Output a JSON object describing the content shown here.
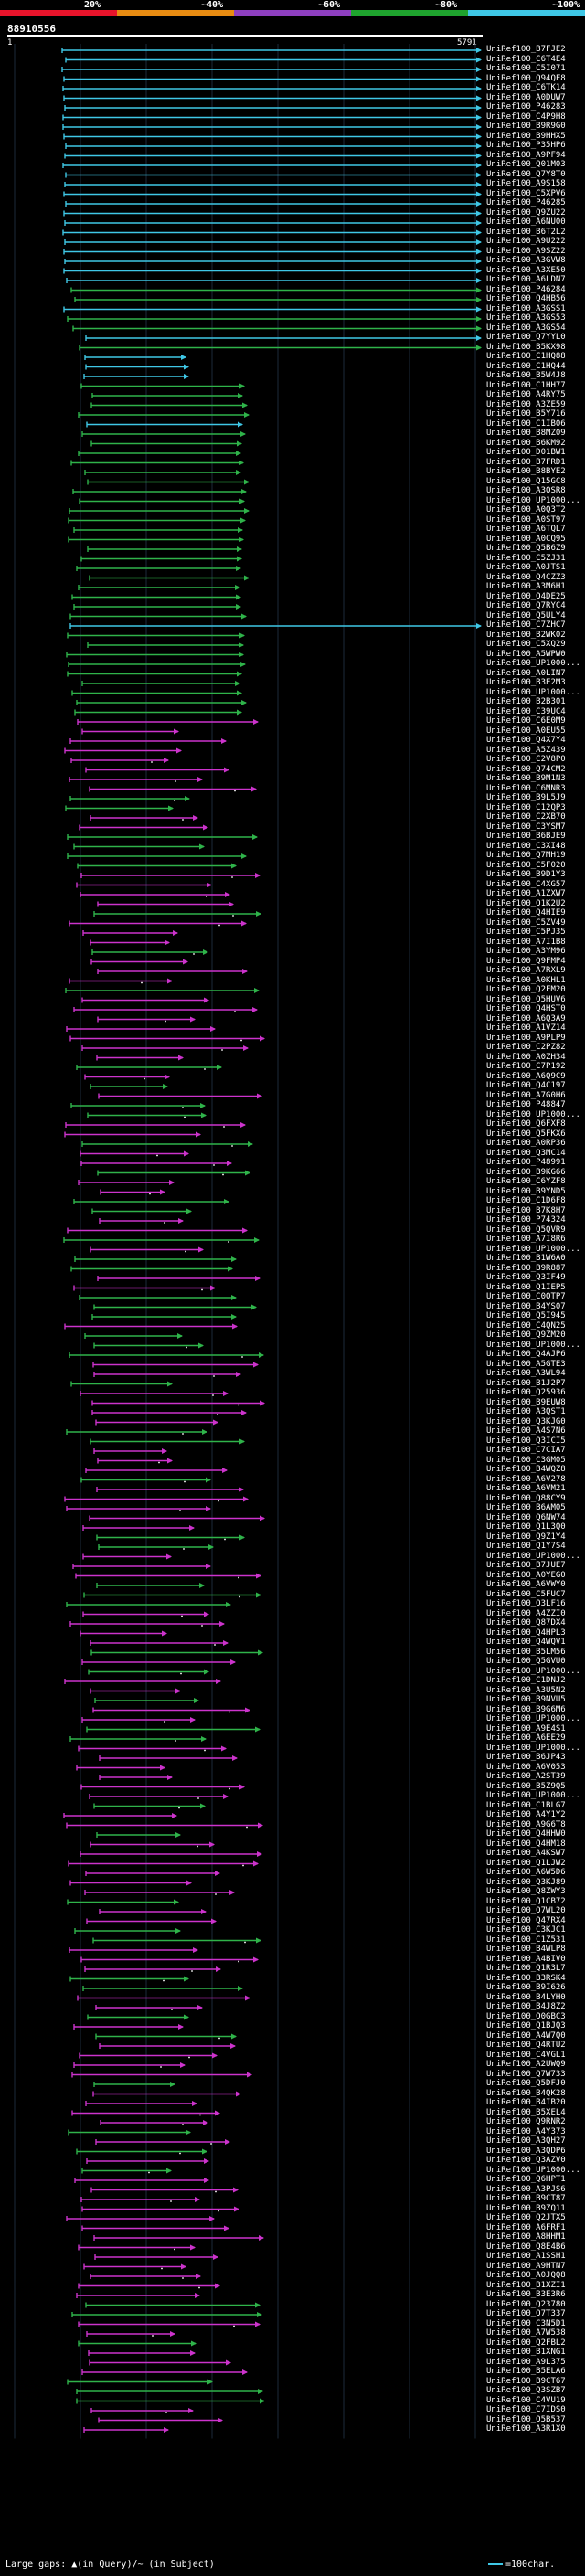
{
  "scale": {
    "marks": [
      "20%",
      "~40%",
      "~60%",
      "~80%",
      "~100%"
    ],
    "colors": [
      "#e8142b",
      "#e88c12",
      "#8e3fbf",
      "#1fa32e",
      "#3fc7e6"
    ]
  },
  "query": {
    "title": "88910556",
    "start": "1",
    "end": "5791"
  },
  "legend": {
    "large_gaps": "Large gaps: ▲(in Query)/~ (in Subject)",
    "scale_note": "=100char."
  },
  "colors": {
    "cyan": "#3fc7e6",
    "green": "#2fb34a",
    "magenta": "#cc33cc"
  },
  "hits": [
    "UniRef100_B7FJE2",
    "UniRef100_C6T4E4",
    "UniRef100_C5I071",
    "UniRef100_Q94QF8",
    "UniRef100_C6TK14",
    "UniRef100_A0DUW7",
    "UniRef100_P46283",
    "UniRef100_C4P9H8",
    "UniRef100_B9R9G0",
    "UniRef100_B9HHX5",
    "UniRef100_P35HP6",
    "UniRef100_A9PF94",
    "UniRef100_Q01M03",
    "UniRef100_Q7Y8T0",
    "UniRef100_A9S158",
    "UniRef100_C5XPV6",
    "UniRef100_P46285",
    "UniRef100_Q9ZU22",
    "UniRef100_A6NU00",
    "UniRef100_B6T2L2",
    "UniRef100_A9U222",
    "UniRef100_A9SZ22",
    "UniRef100_A3GVW8",
    "UniRef100_A3XE50",
    "UniRef100_A6LDN7",
    "UniRef100_P46284",
    "UniRef100_Q4HB56",
    "UniRef100_A3GSS1",
    "UniRef100_A3GS53",
    "UniRef100_A3GS54",
    "UniRef100_Q7YYL0",
    "UniRef100_B5KX98",
    "UniRef100_C1HQ88",
    "UniRef100_C1HQ44",
    "UniRef100_B5W4J8",
    "UniRef100_C1HH77",
    "UniRef100_A4RY75",
    "UniRef100_A3ZE59",
    "UniRef100_B5Y716",
    "UniRef100_C1IB06",
    "UniRef100_B8MZ09",
    "UniRef100_B6KM92",
    "UniRef100_D01BW1",
    "UniRef100_B7FRD1",
    "UniRef100_B8BYE2",
    "UniRef100_Q15GC8",
    "UniRef100_A3QSR8",
    "UniRef100_UP1000...",
    "UniRef100_A0Q3T2",
    "UniRef100_A0ST97",
    "UniRef100_A6TQL7",
    "UniRef100_A0CQ95",
    "UniRef100_Q5B6Z9",
    "UniRef100_C5ZJ31",
    "UniRef100_A0JTS1",
    "UniRef100_Q4CZZ3",
    "UniRef100_A3M6H1",
    "UniRef100_Q4DE25",
    "UniRef100_Q7RYC4",
    "UniRef100_Q5ULY4",
    "UniRef100_C7ZHC7",
    "UniRef100_B2WK02",
    "UniRef100_C5XQ29",
    "UniRef100_A5WPW0",
    "UniRef100_UP1000...",
    "UniRef100_A0LIN7",
    "UniRef100_B3E2M3",
    "UniRef100_UP1000...",
    "UniRef100_B2B301",
    "UniRef100_C39UC4",
    "UniRef100_C6E0M9",
    "UniRef100_A0EU55",
    "UniRef100_Q4X7Y4",
    "UniRef100_A5Z439",
    "UniRef100_C2V8P0",
    "UniRef100_Q74CM2",
    "UniRef100_B9M1N3",
    "UniRef100_C6MNR3",
    "UniRef100_B9L5J9",
    "UniRef100_C12QP3",
    "UniRef100_C2XB70",
    "UniRef100_C3YSM7",
    "UniRef100_B6BJE9",
    "UniRef100_C3XI48",
    "UniRef100_Q7MH19",
    "UniRef100_C5F020",
    "UniRef100_B9D1Y3",
    "UniRef100_C4XG57",
    "UniRef100_A1ZXW7",
    "UniRef100_Q1K2U2",
    "UniRef100_Q4HIE9",
    "UniRef100_C5ZV49",
    "UniRef100_C5PJ35",
    "UniRef100_A7I1B8",
    "UniRef100_A3YM96",
    "UniRef100_Q9FMP4",
    "UniRef100_A7RXL9",
    "UniRef100_A0KHL1",
    "UniRef100_Q2FM20",
    "UniRef100_Q5HUV6",
    "UniRef100_Q4HST0",
    "UniRef100_A6Q3A9",
    "UniRef100_A1VZ14",
    "UniRef100_A9PLP9",
    "UniRef100_C2PZ82",
    "UniRef100_A0ZH34",
    "UniRef100_C7P192",
    "UniRef100_A6Q9C9",
    "UniRef100_Q4C197",
    "UniRef100_A7G0H6",
    "UniRef100_P48847",
    "UniRef100_UP1000...",
    "UniRef100_Q6FXF8",
    "UniRef100_Q5FKX6",
    "UniRef100_A0RP36",
    "UniRef100_Q3MC14",
    "UniRef100_P48991",
    "UniRef100_B9KG66",
    "UniRef100_C6YZF8",
    "UniRef100_B9YND5",
    "UniRef100_C1D6F8",
    "UniRef100_B7K8H7",
    "UniRef100_P74324",
    "UniRef100_Q5QVR9",
    "UniRef100_A7I8R6",
    "UniRef100_UP1000...",
    "UniRef100_B1W6A0",
    "UniRef100_B9R887",
    "UniRef100_Q3IF49",
    "UniRef100_Q1IEP5",
    "UniRef100_C0QTP7",
    "UniRef100_B4YS07",
    "UniRef100_Q5I945",
    "UniRef100_C4QN25",
    "UniRef100_Q9ZM20",
    "UniRef100_UP1000...",
    "UniRef100_Q4AJP6",
    "UniRef100_A5GTE3",
    "UniRef100_A3WL94",
    "UniRef100_B1J2P7",
    "UniRef100_Q25936",
    "UniRef100_B9EUW8",
    "UniRef100_A3QST1",
    "UniRef100_Q3KJG0",
    "UniRef100_A4S7N6",
    "UniRef100_Q3ICI5",
    "UniRef100_C7CIA7",
    "UniRef100_C3GM05",
    "UniRef100_B4WQZ8",
    "UniRef100_A6V278",
    "UniRef100_A6VM21",
    "UniRef100_Q88CY9",
    "UniRef100_B6AM05",
    "UniRef100_Q6NW74",
    "UniRef100_Q1L3Q0",
    "UniRef100_Q9Z1Y4",
    "UniRef100_Q1Y7S4",
    "UniRef100_UP1000...",
    "UniRef100_B7JUE7",
    "UniRef100_A0YEG0",
    "UniRef100_A6VWY0",
    "UniRef100_C5FUC7",
    "UniRef100_Q3LF16",
    "UniRef100_A4ZZI0",
    "UniRef100_Q87DX4",
    "UniRef100_Q4HPL3",
    "UniRef100_Q4WQV1",
    "UniRef100_B5LM56",
    "UniRef100_Q5GVU0",
    "UniRef100_UP1000...",
    "UniRef100_C1DNJ2",
    "UniRef100_A3U5N2",
    "UniRef100_B9NVU5",
    "UniRef100_B9G6M6",
    "UniRef100_UP1000...",
    "UniRef100_A9E4S1",
    "UniRef100_A6EE29",
    "UniRef100_UP1000...",
    "UniRef100_B6JP43",
    "UniRef100_A6V053",
    "UniRef100_A2ST39",
    "UniRef100_B5Z9Q5",
    "UniRef100_UP1000...",
    "UniRef100_C1BLG7",
    "UniRef100_A4Y1Y2",
    "UniRef100_A9G6T8",
    "UniRef100_Q4HHW0",
    "UniRef100_Q4HM18",
    "UniRef100_A4KSW7",
    "UniRef100_Q1LJW2",
    "UniRef100_A6W5D6",
    "UniRef100_Q3KJ89",
    "UniRef100_Q8ZWY3",
    "UniRef100_Q1CB72",
    "UniRef100_Q7WL20",
    "UniRef100_Q47RX4",
    "UniRef100_C3KJC1",
    "UniRef100_C1Z531",
    "UniRef100_B4WLP8",
    "UniRef100_A4BIV0",
    "UniRef100_Q1R3L7",
    "UniRef100_B3RSK4",
    "UniRef100_B9I626",
    "UniRef100_B4LYH0",
    "UniRef100_B4J8Z2",
    "UniRef100_Q0GBC3",
    "UniRef100_Q1BJQ3",
    "UniRef100_A4W7Q0",
    "UniRef100_Q4RTU2",
    "UniRef100_C4VGL1",
    "UniRef100_A2UWQ9",
    "UniRef100_Q7W733",
    "UniRef100_Q5DFJ0",
    "UniRef100_B4QK28",
    "UniRef100_B4IB20",
    "UniRef100_B5XEL4",
    "UniRef100_Q9RNR2",
    "UniRef100_A4Y373",
    "UniRef100_A3QH27",
    "UniRef100_A3QDP6",
    "UniRef100_Q3AZV0",
    "UniRef100_UP1000...",
    "UniRef100_Q6HPT1",
    "UniRef100_A3PJS6",
    "UniRef100_B9CT87",
    "UniRef100_B9ZQ11",
    "UniRef100_Q2JTX5",
    "UniRef100_A6FRF1",
    "UniRef100_A8HHM1",
    "UniRef100_Q8E4B6",
    "UniRef100_A1SSH1",
    "UniRef100_A9HTN7",
    "UniRef100_A0JQQ8",
    "UniRef100_B1XZI1",
    "UniRef100_B3E3R6",
    "UniRef100_Q23780",
    "UniRef100_Q7T337",
    "UniRef100_C3N5D1",
    "UniRef100_A7W538",
    "UniRef100_Q2FBL2",
    "UniRef100_B1XNG1",
    "UniRef100_A9L375",
    "UniRef100_B5ELA6",
    "UniRef100_B9CT67",
    "UniRef100_Q3SZB7",
    "UniRef100_C4VU19",
    "UniRef100_C7IDS0",
    "UniRef100_Q5B537",
    "UniRef100_A3R1X0"
  ]
}
